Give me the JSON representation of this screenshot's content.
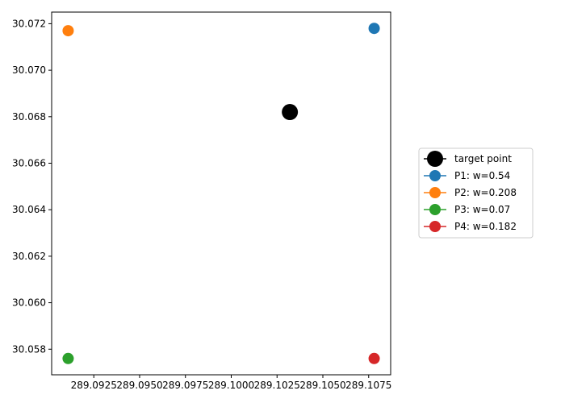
{
  "chart_data": {
    "type": "scatter",
    "title": "",
    "xlabel": "",
    "ylabel": "",
    "xlim": [
      289.0902,
      289.1087
    ],
    "ylim": [
      30.0569,
      30.0725
    ],
    "grid": false,
    "legend_placement": "center-right outside",
    "x_ticks": [
      {
        "value": 289.0925,
        "label": "289.0925"
      },
      {
        "value": 289.095,
        "label": "289.0950"
      },
      {
        "value": 289.0975,
        "label": "289.0975"
      },
      {
        "value": 289.1,
        "label": "289.1000"
      },
      {
        "value": 289.1025,
        "label": "289.1025"
      },
      {
        "value": 289.105,
        "label": "289.1050"
      },
      {
        "value": 289.1075,
        "label": "289.1075"
      }
    ],
    "y_ticks": [
      {
        "value": 30.058,
        "label": "30.058"
      },
      {
        "value": 30.06,
        "label": "30.060"
      },
      {
        "value": 30.062,
        "label": "30.062"
      },
      {
        "value": 30.064,
        "label": "30.064"
      },
      {
        "value": 30.066,
        "label": "30.066"
      },
      {
        "value": 30.068,
        "label": "30.068"
      },
      {
        "value": 30.07,
        "label": "30.070"
      },
      {
        "value": 30.072,
        "label": "30.072"
      }
    ],
    "series": [
      {
        "name": "target point",
        "color": "#000000",
        "marker": "large",
        "points": [
          {
            "x": 289.1032,
            "y": 30.0682
          }
        ]
      },
      {
        "name": "P1: w=0.54",
        "color": "#1f77b4",
        "marker": "normal",
        "points": [
          {
            "x": 289.1078,
            "y": 30.0718
          }
        ]
      },
      {
        "name": "P2: w=0.208",
        "color": "#ff7f0e",
        "marker": "normal",
        "points": [
          {
            "x": 289.0911,
            "y": 30.0717
          }
        ]
      },
      {
        "name": "P3: w=0.07",
        "color": "#2ca02c",
        "marker": "normal",
        "points": [
          {
            "x": 289.0911,
            "y": 30.0576
          }
        ]
      },
      {
        "name": "P4: w=0.182",
        "color": "#d62728",
        "marker": "normal",
        "points": [
          {
            "x": 289.1078,
            "y": 30.0576
          }
        ]
      }
    ]
  }
}
